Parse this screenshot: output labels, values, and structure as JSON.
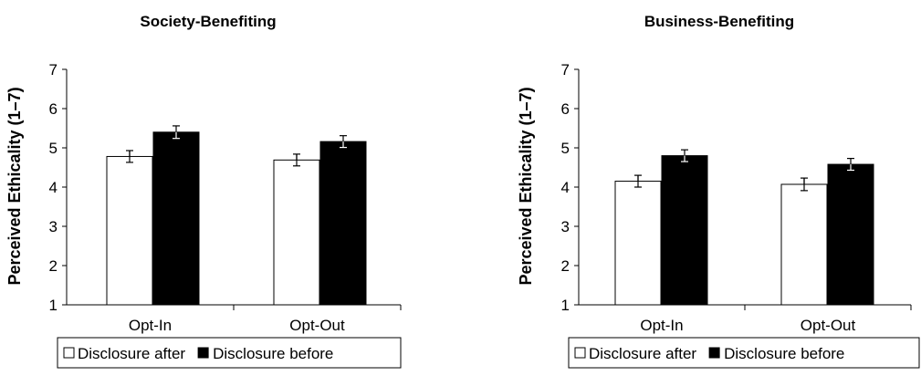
{
  "chart_data": [
    {
      "type": "bar",
      "title": "Society-Benefiting",
      "ylabel": "Perceived Ethicality (1–7)",
      "xlabel": "",
      "categories": [
        "Opt-In",
        "Opt-Out"
      ],
      "ylim": [
        1,
        7
      ],
      "yticks": [
        "1",
        "2",
        "3",
        "4",
        "5",
        "6",
        "7"
      ],
      "grid": false,
      "legend_position": "bottom",
      "series": [
        {
          "name": "Disclosure after",
          "values": [
            4.78,
            4.69
          ],
          "errors": [
            0.15,
            0.15
          ],
          "color": "#ffffff"
        },
        {
          "name": "Disclosure before",
          "values": [
            5.4,
            5.16
          ],
          "errors": [
            0.16,
            0.15
          ],
          "color": "#000000"
        }
      ]
    },
    {
      "type": "bar",
      "title": "Business-Benefiting",
      "ylabel": "Perceived Ethicality (1–7)",
      "xlabel": "",
      "categories": [
        "Opt-In",
        "Opt-Out"
      ],
      "ylim": [
        1,
        7
      ],
      "yticks": [
        "1",
        "2",
        "3",
        "4",
        "5",
        "6",
        "7"
      ],
      "grid": false,
      "legend_position": "bottom",
      "series": [
        {
          "name": "Disclosure after",
          "values": [
            4.15,
            4.07
          ],
          "errors": [
            0.15,
            0.16
          ],
          "color": "#ffffff"
        },
        {
          "name": "Disclosure before",
          "values": [
            4.8,
            4.58
          ],
          "errors": [
            0.15,
            0.15
          ],
          "color": "#000000"
        }
      ]
    }
  ]
}
